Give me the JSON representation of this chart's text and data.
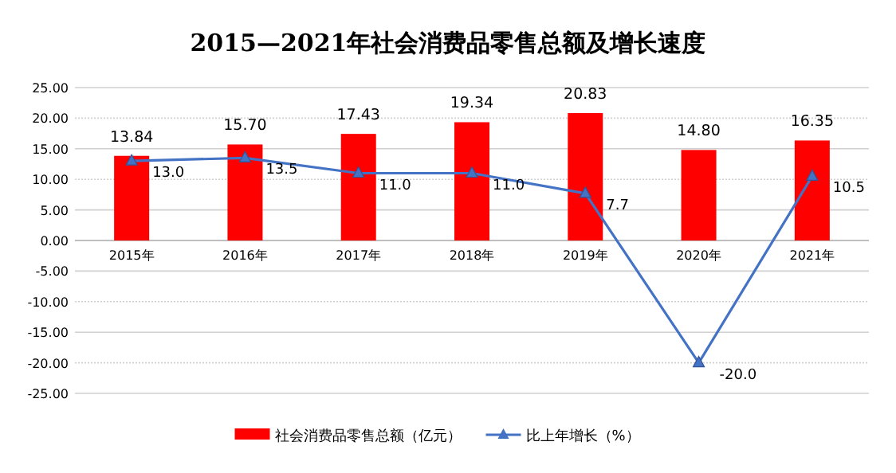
{
  "chart_data": {
    "type": "bar",
    "title": "2015—2021年社会消费品零售总额及增长速度",
    "categories": [
      "2015年",
      "2016年",
      "2017年",
      "2018年",
      "2019年",
      "2020年",
      "2021年"
    ],
    "series": [
      {
        "name": "社会消费品零售总额（亿元）",
        "color": "#ff0000",
        "values": [
          13.84,
          15.7,
          17.43,
          19.34,
          20.83,
          14.8,
          16.35
        ],
        "value_labels": [
          "13.84",
          "15.70",
          "17.43",
          "19.34",
          "20.83",
          "14.80",
          "16.35"
        ]
      },
      {
        "name": "比上年增长（%）",
        "type": "line",
        "color": "#4472c4",
        "marker": "triangle",
        "values": [
          13.0,
          13.5,
          11.0,
          11.0,
          7.7,
          -20.0,
          10.5
        ],
        "value_labels": [
          "13.0",
          "13.5",
          "11.0",
          "11.0",
          "7.7",
          "-20.0",
          "10.5"
        ]
      }
    ],
    "ylim": [
      -25,
      25
    ],
    "yticks": [
      {
        "value": -25,
        "label": "-25.00"
      },
      {
        "value": -20,
        "label": "-20.00"
      },
      {
        "value": -15,
        "label": "-15.00"
      },
      {
        "value": -10,
        "label": "-10.00"
      },
      {
        "value": -5,
        "label": "-5.00"
      },
      {
        "value": 0,
        "label": "0.00"
      },
      {
        "value": 5,
        "label": "5.00"
      },
      {
        "value": 10,
        "label": "10.00"
      },
      {
        "value": 15,
        "label": "15.00"
      },
      {
        "value": 20,
        "label": "20.00"
      },
      {
        "value": 25,
        "label": "25.00"
      }
    ],
    "grid": "y",
    "legend": "bottom"
  }
}
